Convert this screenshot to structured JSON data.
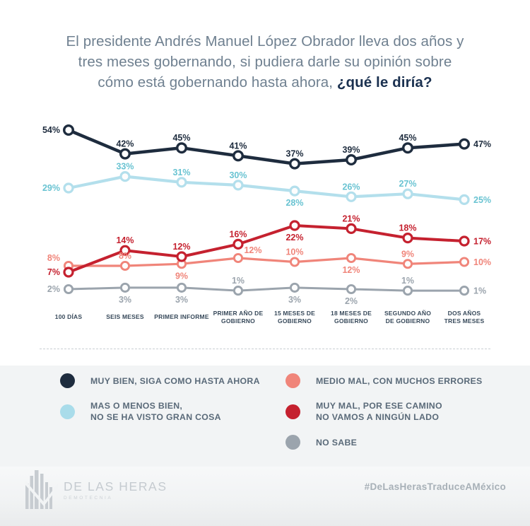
{
  "header": {
    "question_regular": "El presidente Andrés Manuel López Obrador lleva dos años y\ntres meses gobernando, si pudiera darle su opinión sobre\ncómo está gobernando hasta ahora, ",
    "question_bold": "¿qué le diría?"
  },
  "chart_data": {
    "type": "line",
    "unit": "%",
    "grid": false,
    "axes_hidden": true,
    "legend_position": "bottom",
    "categories": [
      "100 DÍAS",
      "SEIS MESES",
      "PRIMER INFORME",
      "PRIMER AÑO DE\nGOBIERNO",
      "15 MESES DE\nGOBIERNO",
      "18 MESES DE\nGOBIERNO",
      "SEGUNDO AÑO\nDE GOBIERNO",
      "DOS AÑOS\nTRES MESES"
    ],
    "series": [
      {
        "key": "muy_bien",
        "name": "MUY BIEN, SIGA COMO HASTA AHORA",
        "values": [
          54,
          42,
          45,
          41,
          37,
          39,
          45,
          47
        ]
      },
      {
        "key": "mas_o_menos",
        "name": "MAS O MENOS BIEN, NO SE HA VISTO GRAN COSA",
        "values": [
          29,
          33,
          31,
          30,
          28,
          26,
          27,
          25
        ]
      },
      {
        "key": "muy_mal",
        "name": "MUY MAL, POR ESE CAMINO NO VAMOS A NINGÚN LADO",
        "values": [
          7,
          14,
          12,
          16,
          22,
          21,
          18,
          17
        ]
      },
      {
        "key": "medio_mal",
        "name": "MEDIO MAL, CON MUCHOS ERRORES",
        "values": [
          8,
          8,
          9,
          12,
          10,
          12,
          9,
          10
        ]
      },
      {
        "key": "no_sabe",
        "name": "NO SABE",
        "values": [
          2,
          3,
          3,
          1,
          3,
          2,
          1,
          1
        ]
      }
    ]
  },
  "colors": {
    "muy_bien": "#1e2c3e",
    "mas_o_menos_line": "#b3dfec",
    "mas_o_menos_dot": "#a9dcea",
    "mas_o_menos_label": "#69c3d2",
    "muy_mal": "#c5212f",
    "medio_mal": "#f0857a",
    "no_sabe": "#9ba4ad",
    "marker_fill": "#fdfdfd"
  },
  "legend": {
    "columns": [
      [
        {
          "key": "muy_bien",
          "dot_color_key": "muy_bien",
          "label": "MUY BIEN, SIGA COMO HASTA AHORA"
        },
        {
          "key": "mas_o_menos",
          "dot_color_key": "mas_o_menos_dot",
          "label": "MAS O MENOS BIEN,\nNO SE HA VISTO GRAN COSA"
        }
      ],
      [
        {
          "key": "medio_mal",
          "dot_color_key": "medio_mal",
          "label": "MEDIO MAL, CON MUCHOS ERRORES"
        },
        {
          "key": "muy_mal",
          "dot_color_key": "muy_mal",
          "label": "MUY MAL, POR ESE CAMINO\nNO VAMOS A NINGÚN LADO"
        },
        {
          "key": "no_sabe",
          "dot_color_key": "no_sabe",
          "label": "NO SABE"
        }
      ]
    ]
  },
  "footer": {
    "brand_name": "DE LAS HERAS",
    "brand_sub": "DEMOTECNIA",
    "hashtag": "#DeLasHerasTraduceAMéxico"
  }
}
